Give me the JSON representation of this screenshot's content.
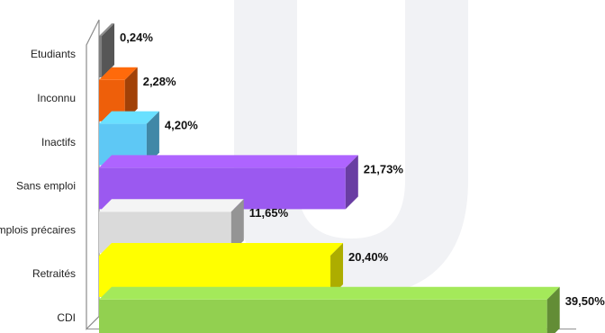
{
  "chart_data": {
    "type": "bar",
    "orientation": "horizontal",
    "style": "3d",
    "categories": [
      "Etudiants",
      "Inconnu",
      "Inactifs",
      "Sans emploi",
      "Emplois précaires",
      "Retraités",
      "CDI"
    ],
    "values": [
      0.24,
      2.28,
      4.2,
      21.73,
      11.65,
      20.4,
      39.5
    ],
    "value_labels": [
      "0,24%",
      "2,28%",
      "4,20%",
      "21,73%",
      "11,65%",
      "20,40%",
      "39,50%"
    ],
    "colors": [
      "#7f7f7f",
      "#ee5f0a",
      "#5ec8f5",
      "#9b59f0",
      "#dadada",
      "#ffff00",
      "#92d050"
    ],
    "xlim": [
      0,
      40
    ],
    "title": "",
    "xlabel": "",
    "ylabel": "",
    "grid": false,
    "legend": "none"
  }
}
